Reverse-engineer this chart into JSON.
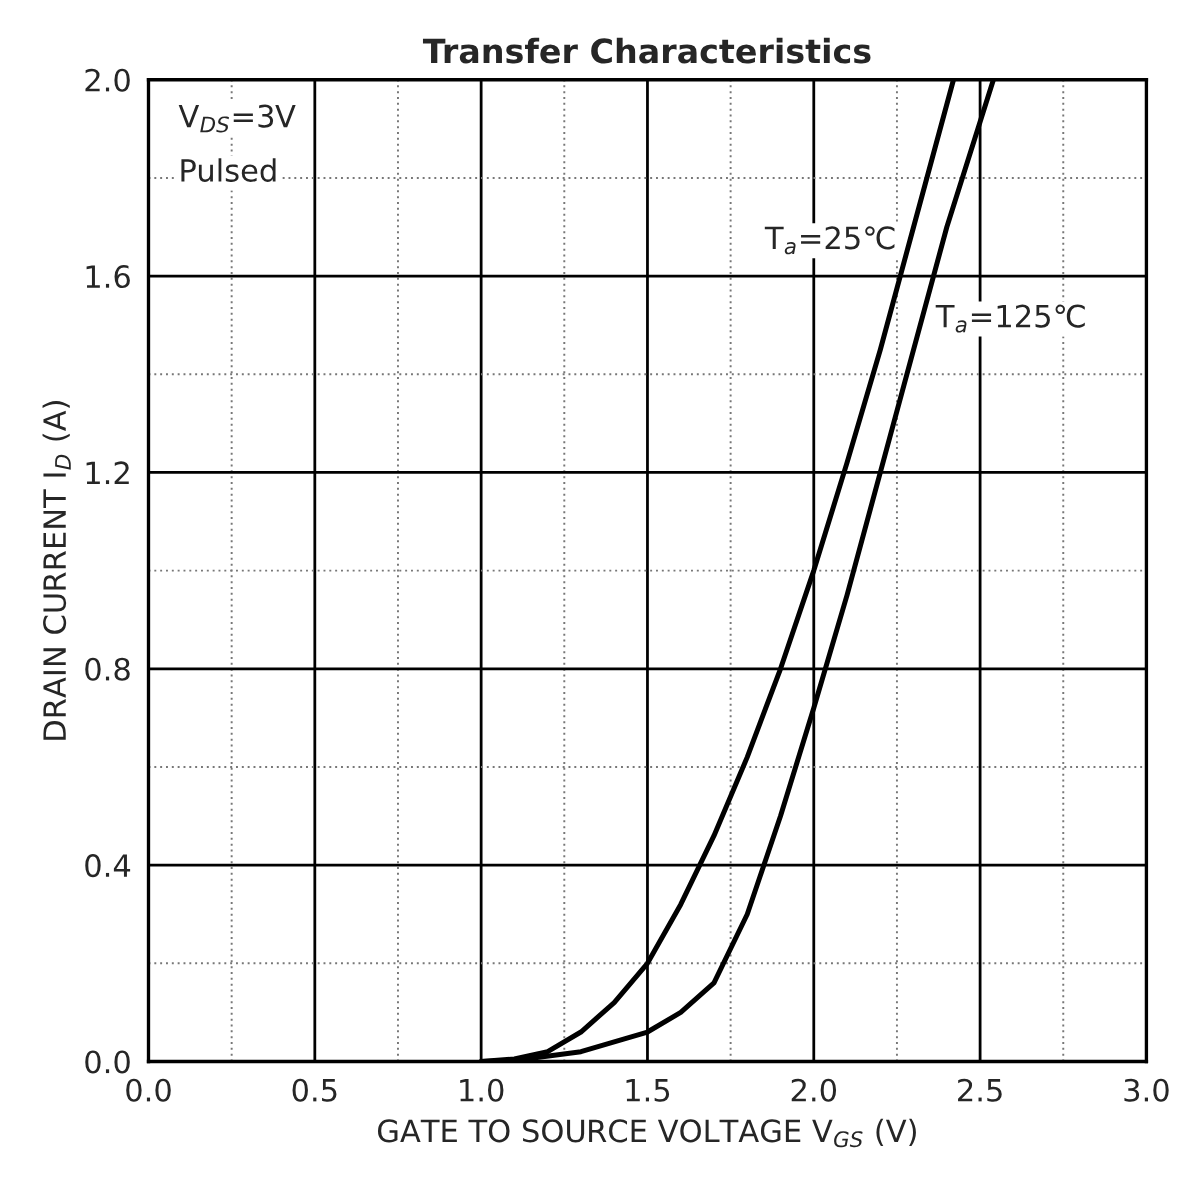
{
  "chart_data": {
    "type": "line",
    "title": "Transfer Characteristics",
    "xlabel": "GATE TO SOURCE VOLTAGE V$_{GS}$ (V)",
    "ylabel": "DRAIN CURRENT I$_{D}$ (A)",
    "annotations": [
      "V$_{DS}$=3V",
      "Pulsed"
    ],
    "series": [
      {
        "name": "T$_{a}$=25℃",
        "color": "#000000",
        "x": [
          1.0,
          1.1,
          1.2,
          1.3,
          1.4,
          1.5,
          1.6,
          1.7,
          1.8,
          1.9,
          2.0,
          2.1,
          2.2,
          2.3,
          2.42
        ],
        "values": [
          0.0,
          0.005,
          0.02,
          0.06,
          0.12,
          0.2,
          0.32,
          0.46,
          0.62,
          0.8,
          1.0,
          1.22,
          1.45,
          1.7,
          2.0
        ]
      },
      {
        "name": "T$_{a}$=125℃",
        "color": "#000000",
        "x": [
          1.0,
          1.1,
          1.3,
          1.5,
          1.6,
          1.7,
          1.8,
          1.9,
          2.0,
          2.1,
          2.2,
          2.3,
          2.4,
          2.54
        ],
        "values": [
          0.0,
          0.002,
          0.02,
          0.06,
          0.1,
          0.16,
          0.3,
          0.5,
          0.72,
          0.95,
          1.2,
          1.45,
          1.7,
          2.0
        ]
      }
    ],
    "xlim": [
      0.0,
      3.0
    ],
    "xticks": [
      {
        "value": 0,
        "label": "0.0"
      },
      0.5,
      {
        "value": 1,
        "label": "1.0"
      },
      1.5,
      {
        "value": 2,
        "label": "2.0"
      },
      2.5,
      {
        "value": 3,
        "label": "3.0"
      }
    ],
    "ylim": [
      0.0,
      2.0
    ],
    "yticks": [
      {
        "value": 0,
        "label": "0.0"
      },
      0.4,
      0.8,
      1.2,
      1.6,
      {
        "value": 2,
        "label": "2.0"
      }
    ],
    "grid": true,
    "legend": false,
    "marker": "none",
    "line_style": "solid"
  }
}
